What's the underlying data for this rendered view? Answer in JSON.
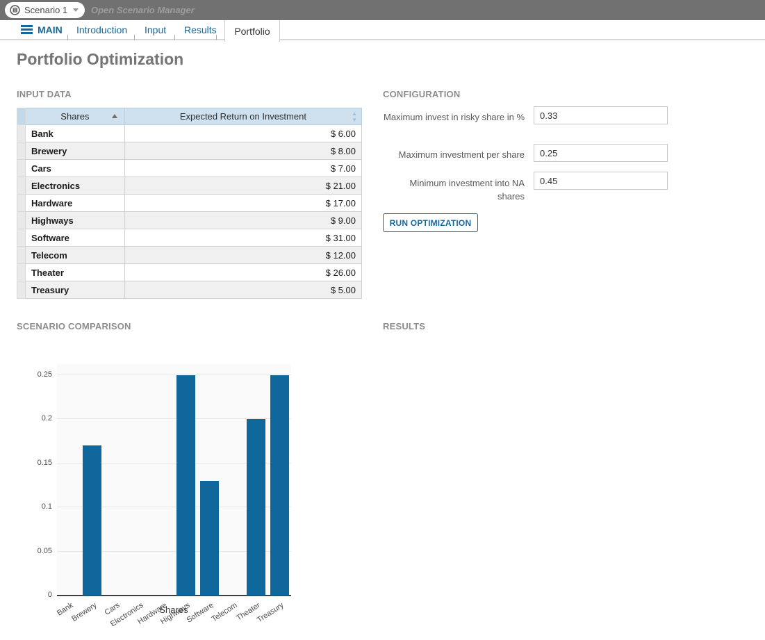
{
  "topbar": {
    "scenario_label": "Scenario 1",
    "open_scenario_manager": "Open Scenario Manager"
  },
  "tabs": {
    "main": "MAIN",
    "introduction": "Introduction",
    "input": "Input",
    "results": "Results",
    "portfolio": "Portfolio",
    "active": "Portfolio"
  },
  "page": {
    "title": "Portfolio Optimization"
  },
  "sections": {
    "input_data": "INPUT DATA",
    "configuration": "CONFIGURATION",
    "scenario_comparison": "SCENARIO COMPARISON",
    "results": "RESULTS"
  },
  "input_table": {
    "columns": [
      "Shares",
      "Expected Return on Investment"
    ],
    "rows": [
      {
        "share": "Bank",
        "value": "$ 6.00"
      },
      {
        "share": "Brewery",
        "value": "$ 8.00"
      },
      {
        "share": "Cars",
        "value": "$ 7.00"
      },
      {
        "share": "Electronics",
        "value": "$ 21.00"
      },
      {
        "share": "Hardware",
        "value": "$ 17.00"
      },
      {
        "share": "Highways",
        "value": "$ 9.00"
      },
      {
        "share": "Software",
        "value": "$ 31.00"
      },
      {
        "share": "Telecom",
        "value": "$ 12.00"
      },
      {
        "share": "Theater",
        "value": "$ 26.00"
      },
      {
        "share": "Treasury",
        "value": "$ 5.00"
      }
    ]
  },
  "configuration": {
    "fields": [
      {
        "label": "Maximum invest in risky share in %",
        "value": "0.33"
      },
      {
        "label": "Maximum investment per share",
        "value": "0.25"
      },
      {
        "label": "Minimum investment into NA shares",
        "value": "0.45"
      }
    ],
    "run_button": "RUN OPTIMIZATION"
  },
  "chart_data": {
    "type": "bar",
    "title": "",
    "xlabel": "Shares",
    "ylabel": "",
    "categories": [
      "Bank",
      "Brewery",
      "Cars",
      "Electronics",
      "Hardware",
      "Highways",
      "Software",
      "Telecom",
      "Theater",
      "Treasury"
    ],
    "values": [
      0,
      0.17,
      0,
      0,
      0,
      0.25,
      0.13,
      0,
      0.2,
      0.25
    ],
    "yticks": [
      0,
      0.05,
      0.1,
      0.15,
      0.2,
      0.25
    ],
    "ylim": [
      0,
      0.2625
    ],
    "grid": true,
    "legend": false,
    "bar_color": "#0f679b"
  },
  "colors": {
    "accent_blue": "#15689d",
    "bar_blue": "#0f679b",
    "topbar_gray": "#717171",
    "table_header_bg": "#cfe1ef",
    "row_alt_bg": "#f0f0f0"
  }
}
